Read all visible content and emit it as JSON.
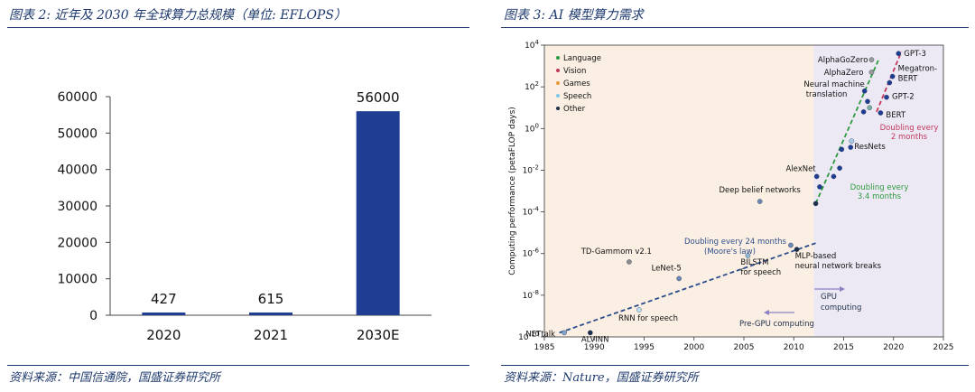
{
  "left": {
    "title": "图表 2:  近年及 2030 年全球算力总规模（单位:  EFLOPS）",
    "source": "资料来源：中国信通院，国盛证券研究所",
    "chart_data": {
      "type": "bar",
      "categories": [
        "2020",
        "2021",
        "2030E"
      ],
      "values": [
        427,
        615,
        56000
      ],
      "data_labels": [
        "427",
        "615",
        "56000"
      ],
      "yticks": [
        0,
        10000,
        20000,
        30000,
        40000,
        50000,
        60000
      ],
      "ylim": [
        0,
        60000
      ],
      "bar_color": "#1f3d93",
      "grid": false
    }
  },
  "right": {
    "title": "图表 3:  AI 模型算力需求",
    "source": "资料来源：Nature，国盛证券研究所",
    "chart_data": {
      "type": "scatter",
      "ylabel": "Computing performance (petaFLOP days)",
      "xlim": [
        1985,
        2025
      ],
      "ylim_log10": [
        -10,
        4
      ],
      "yscale": "log",
      "xticks": [
        1985,
        1990,
        1995,
        2000,
        2005,
        2010,
        2015,
        2020,
        2025
      ],
      "yticks": [
        "10^-10",
        "10^-8",
        "10^-6",
        "10^-4",
        "10^-2",
        "10^0",
        "10^2",
        "10^4"
      ],
      "regions": [
        {
          "label": "Pre-GPU computing",
          "from": 1985,
          "to": 2012,
          "color": "#fbefe3"
        },
        {
          "label": "GPU computing",
          "from": 2012,
          "to": 2025,
          "color": "#ece9f4"
        }
      ],
      "legend": {
        "position": "top-left",
        "entries": [
          {
            "name": "Language",
            "color": "#2e9a3e"
          },
          {
            "name": "Vision",
            "color": "#c4375a"
          },
          {
            "name": "Games",
            "color": "#e89a3a"
          },
          {
            "name": "Speech",
            "color": "#7fc8e8"
          },
          {
            "name": "Other",
            "color": "#1c2e4a"
          }
        ]
      },
      "points": [
        {
          "x": 1987,
          "y": -9.8,
          "label": "NETtalk",
          "color": "#7fa6c9"
        },
        {
          "x": 1989.6,
          "y": -9.8,
          "label": "ALVINN",
          "color": "#1c2e4a"
        },
        {
          "x": 1993.5,
          "y": -6.4,
          "label": "TD-Gammom v2.1",
          "color": "#8c8c8c"
        },
        {
          "x": 1994.5,
          "y": -8.7,
          "label": "RNN for speech",
          "color": "#bcdff0"
        },
        {
          "x": 1998.5,
          "y": -7.2,
          "label": "LeNet-5",
          "color": "#6d88b3"
        },
        {
          "x": 2005.4,
          "y": -6.1,
          "label": "BILSTM for speech",
          "color": "#8fb9d6"
        },
        {
          "x": 2006.6,
          "y": -3.5,
          "label": "Deep belief networks",
          "color": "#6d88b3"
        },
        {
          "x": 2009.7,
          "y": -5.6,
          "label": "",
          "color": "#6d88b3"
        },
        {
          "x": 2010.3,
          "y": -5.8,
          "label": "MLP-based neural network breaks",
          "color": "#1c2e4a"
        },
        {
          "x": 2012.2,
          "y": -3.6,
          "label": "",
          "color": "#1c2e4a"
        },
        {
          "x": 2012.3,
          "y": -2.3,
          "label": "AlexNet",
          "color": "#1f3d93"
        },
        {
          "x": 2012.6,
          "y": -2.8,
          "label": "",
          "color": "#1f3d93"
        },
        {
          "x": 2014,
          "y": -2.3,
          "label": "",
          "color": "#1f3d93"
        },
        {
          "x": 2014.6,
          "y": -1.9,
          "label": "",
          "color": "#1f3d93"
        },
        {
          "x": 2014.8,
          "y": -1,
          "label": "",
          "color": "#1f3d93"
        },
        {
          "x": 2015.7,
          "y": -0.9,
          "label": "ResNets",
          "color": "#1f3d93"
        },
        {
          "x": 2015.8,
          "y": -0.6,
          "label": "",
          "color": "#a8cde6"
        },
        {
          "x": 2017,
          "y": 0.8,
          "label": "",
          "color": "#1f3d93"
        },
        {
          "x": 2017.1,
          "y": 1.8,
          "label": "Neural machine translation",
          "color": "#1f3d93"
        },
        {
          "x": 2017.4,
          "y": 1.3,
          "label": "",
          "color": "#1f3d93"
        },
        {
          "x": 2017.6,
          "y": 1,
          "label": "",
          "color": "#7ab0a0"
        },
        {
          "x": 2017.8,
          "y": 3.3,
          "label": "AlphaGoZero",
          "color": "#9a9a9a"
        },
        {
          "x": 2017.8,
          "y": 2.7,
          "label": "AlphaZero",
          "color": "#9a9a9a"
        },
        {
          "x": 2018.7,
          "y": 0.75,
          "label": "BERT",
          "color": "#1f3d93"
        },
        {
          "x": 2019.3,
          "y": 1.5,
          "label": "GPT-2",
          "color": "#1f3d93"
        },
        {
          "x": 2019.6,
          "y": 2.2,
          "label": "",
          "color": "#1f3d93"
        },
        {
          "x": 2019.9,
          "y": 2.5,
          "label": "Megatron-BERT",
          "color": "#1f3d93"
        },
        {
          "x": 2020.5,
          "y": 3.6,
          "label": "GPT-3",
          "color": "#1f3d93"
        }
      ],
      "trends": [
        {
          "label": "Doubling every 24 months (Moore's law)",
          "from": [
            1986.5,
            -9.8
          ],
          "to": [
            2012.2,
            -5.5
          ],
          "color": "#2c4d8a",
          "style": "dashed"
        },
        {
          "label": "Doubling every 3.4 months",
          "from": [
            2012.2,
            -3.6
          ],
          "to": [
            2018.5,
            3.3
          ],
          "color": "#2e9a3e",
          "style": "dashed"
        },
        {
          "label": "Doubling every 2 months",
          "from": [
            2018.3,
            0.8
          ],
          "to": [
            2020.8,
            3.7
          ],
          "color": "#c4375a",
          "style": "dashed"
        }
      ],
      "annotations": [
        {
          "text": "Doubling every 24 months",
          "color": "#2c4d8a"
        },
        {
          "text": "(Moore's law)",
          "color": "#2c4d8a"
        },
        {
          "text": "Doubling every",
          "color": "#2e9a3e"
        },
        {
          "text": "3.4 months",
          "color": "#2e9a3e"
        },
        {
          "text": "Doubling every",
          "color": "#c4375a"
        },
        {
          "text": "2 months",
          "color": "#c4375a"
        },
        {
          "text": "GPU",
          "color": "#1c2e4a"
        },
        {
          "text": "computing",
          "color": "#1c2e4a"
        },
        {
          "text": "Pre-GPU computing",
          "color": "#1c2e4a"
        }
      ]
    }
  }
}
